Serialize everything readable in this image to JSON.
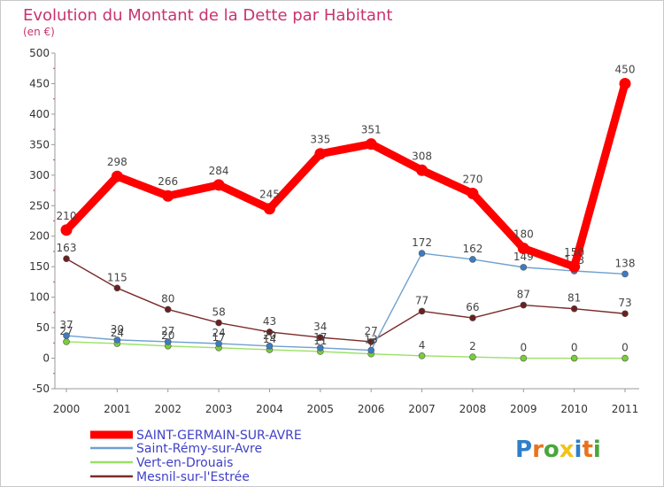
{
  "chart_data": {
    "type": "line",
    "title": "Evolution du Montant de la Dette par Habitant",
    "subtitle": "(en €)",
    "xlabel": "",
    "ylabel": "",
    "x": [
      "2000",
      "2001",
      "2002",
      "2003",
      "2004",
      "2005",
      "2006",
      "2007",
      "2008",
      "2009",
      "2010",
      "2011"
    ],
    "ylim": [
      -50,
      500
    ],
    "yticks": [
      -50,
      0,
      50,
      100,
      150,
      200,
      250,
      300,
      350,
      400,
      450,
      500
    ],
    "grid": false,
    "legend_position": "bottom-left",
    "series": [
      {
        "name": "SAINT-GERMAIN-SUR-AVRE",
        "color": "#ff0000",
        "values": [
          210,
          298,
          266,
          284,
          245,
          335,
          351,
          308,
          270,
          180,
          150,
          450
        ],
        "labels": [
          "210",
          "298",
          "266",
          "284",
          "245",
          "335",
          "351",
          "308",
          "270",
          "180",
          "150",
          "450"
        ]
      },
      {
        "name": "Saint-Rémy-sur-Avre",
        "color": "#6fa0d0",
        "marker_color": "#3a7cc4",
        "values": [
          37,
          30,
          27,
          24,
          20,
          17,
          13,
          172,
          162,
          149,
          143,
          138
        ],
        "labels": [
          "37",
          "30",
          "27",
          "24",
          "20",
          "17",
          "13",
          "172",
          "162",
          "149",
          "143",
          "138"
        ]
      },
      {
        "name": "Vert-en-Drouais",
        "color": "#9ae066",
        "marker_color": "#7acc3a",
        "values": [
          27,
          24,
          20,
          17,
          14,
          11,
          7,
          4,
          2,
          0,
          0,
          0
        ],
        "labels": [
          "27",
          "24",
          "20",
          "17",
          "14",
          "11",
          "7",
          "4",
          "2",
          "0",
          "0",
          "0"
        ]
      },
      {
        "name": "Mesnil-sur-l'Estrée",
        "color": "#7a2a2a",
        "marker_color": "#6b1f1f",
        "values": [
          163,
          115,
          80,
          58,
          43,
          34,
          27,
          77,
          66,
          87,
          81,
          73
        ],
        "labels": [
          "163",
          "115",
          "80",
          "58",
          "43",
          "34",
          "27",
          "77",
          "66",
          "87",
          "81",
          "73"
        ]
      }
    ]
  },
  "brand": {
    "letters": [
      "P",
      "r",
      "o",
      "x",
      "i",
      "t",
      "i"
    ],
    "colors": [
      "#2d7fc9",
      "#e8731e",
      "#4aa63c",
      "#f0c419",
      "#2d7fc9",
      "#e8731e",
      "#4aa63c"
    ]
  }
}
